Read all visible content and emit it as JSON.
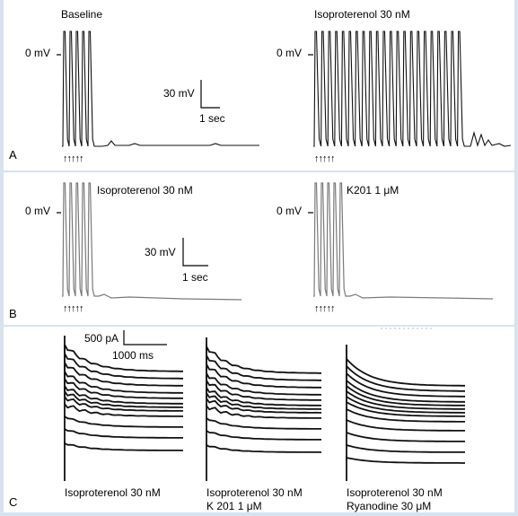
{
  "panels": {
    "A": {
      "letter": "A",
      "left_title": "Baseline",
      "right_title": "Isoproterenol  30 nM",
      "zero_left": "0 mV",
      "zero_right": "0 mV",
      "scale_v": "30 mV",
      "scale_t": "1 sec",
      "stimuli": "↑↑↑↑↑",
      "stimuli_right": "↑↑↑↑↑"
    },
    "B": {
      "letter": "B",
      "left_title": "Isoproterenol  30 nM",
      "right_title": "K201 1 μM",
      "zero_left": "0 mV",
      "zero_right": "0 mV",
      "scale_v": "30 mV",
      "scale_t": "1 sec",
      "stimuli": "↑↑↑↑↑",
      "stimuli_right": "↑↑↑↑↑"
    },
    "C": {
      "letter": "C",
      "scale_i": "500 pA",
      "scale_t": "1000 ms",
      "captions": [
        {
          "line1": "Isoproterenol  30 nM",
          "line2": ""
        },
        {
          "line1": "Isoproterenol  30 nM",
          "line2": "K 201 1 μM"
        },
        {
          "line1": "Isoproterenol  30 nM",
          "line2": "Ryanodine 30 μM"
        }
      ]
    }
  },
  "colors": {
    "background": "#d7e3ef",
    "panel": "#ffffff",
    "trace": "#111111",
    "trace_gray": "#7a7a7a"
  }
}
